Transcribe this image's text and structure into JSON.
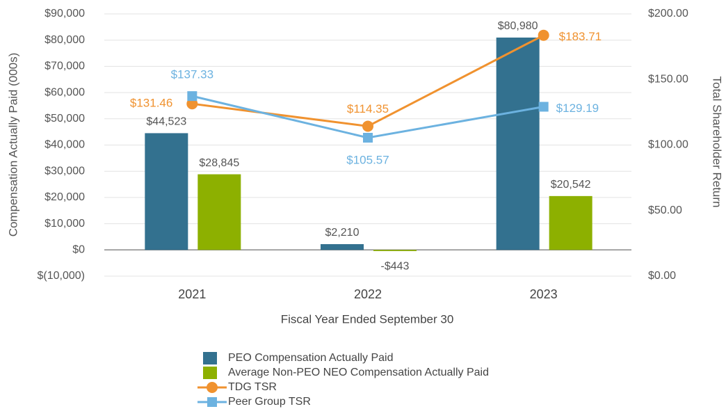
{
  "chart_data": {
    "type": "bar",
    "categories": [
      "2021",
      "2022",
      "2023"
    ],
    "x_label": "Fiscal Year Ended September 30",
    "y_label": "Compensation Actually Paid (000s)",
    "y2_label": "Total Shareholder Return",
    "ylim": [
      -10000,
      90000
    ],
    "yticks": [
      {
        "value": -10000,
        "label": "$(10,000)"
      },
      {
        "value": 0,
        "label": "$0"
      },
      {
        "value": 10000,
        "label": "$10,000"
      },
      {
        "value": 20000,
        "label": "$20,000"
      },
      {
        "value": 30000,
        "label": "$30,000"
      },
      {
        "value": 40000,
        "label": "$40,000"
      },
      {
        "value": 50000,
        "label": "$50,000"
      },
      {
        "value": 60000,
        "label": "$60,000"
      },
      {
        "value": 70000,
        "label": "$70,000"
      },
      {
        "value": 80000,
        "label": "$80,000"
      },
      {
        "value": 90000,
        "label": "$90,000"
      }
    ],
    "y2lim": [
      0,
      200
    ],
    "y2ticks": [
      {
        "value": 0,
        "label": "$0.00"
      },
      {
        "value": 50,
        "label": "$50.00"
      },
      {
        "value": 100,
        "label": "$100.00"
      },
      {
        "value": 150,
        "label": "$150.00"
      },
      {
        "value": 200,
        "label": "$200.00"
      }
    ],
    "grid": true,
    "legend": "bottom",
    "series": [
      {
        "name": "PEO Compensation Actually Paid",
        "color": "#33718f",
        "values": [
          44523,
          2210,
          80980
        ],
        "value_labels": [
          "$44,523",
          "$2,210",
          "$80,980"
        ]
      },
      {
        "name": "Average Non-PEO NEO Compensation Actually Paid",
        "color": "#8db000",
        "values": [
          28845,
          -443,
          20542
        ],
        "value_labels": [
          "$28,845",
          "-$443",
          "$20,542"
        ]
      },
      {
        "name": "TDG TSR",
        "color": "#f0922f",
        "type": "line",
        "marker": "circle",
        "axis": "y2",
        "values": [
          131.46,
          114.35,
          183.71
        ],
        "value_labels": [
          "$131.46",
          "$114.35",
          "$183.71"
        ]
      },
      {
        "name": "Peer Group TSR",
        "color": "#6cb2e0",
        "type": "line",
        "marker": "square",
        "axis": "y2",
        "values": [
          137.33,
          105.57,
          129.19
        ],
        "value_labels": [
          "$137.33",
          "$105.57",
          "$129.19"
        ]
      }
    ]
  }
}
